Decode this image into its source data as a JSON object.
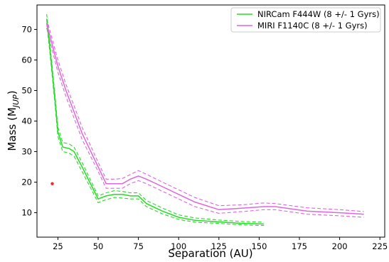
{
  "chart_data": {
    "type": "line",
    "xlabel": "Separation (AU)",
    "ylabel": "Mass (M",
    "ylabel_sub": "JUP",
    "ylabel_close": ")",
    "xlim": [
      12,
      228
    ],
    "ylim": [
      2,
      78
    ],
    "xticks": [
      25,
      50,
      75,
      100,
      125,
      150,
      175,
      200,
      225
    ],
    "yticks": [
      10,
      20,
      30,
      40,
      50,
      60,
      70
    ],
    "grid": false,
    "legend_position": "top-right",
    "series": [
      {
        "name": "NIRCam F444W (8 +/- 1 Gyrs)",
        "color": "#22dd22",
        "x": [
          18,
          20,
          23,
          25,
          28,
          32,
          35,
          40,
          50,
          55,
          60,
          65,
          70,
          75,
          80,
          90,
          100,
          110,
          125,
          140,
          153
        ],
        "y": [
          73.5,
          64,
          48,
          36.5,
          31.5,
          31,
          30,
          25,
          14.5,
          15.5,
          16,
          16,
          15.5,
          15.5,
          13,
          10.5,
          8.5,
          7.5,
          7,
          6.5,
          6.3
        ],
        "upper": [
          75,
          65.5,
          49.5,
          38,
          33,
          32.5,
          31.5,
          26.5,
          15.5,
          16.5,
          17.2,
          17,
          16.5,
          16.5,
          14,
          11.5,
          9.3,
          8.3,
          7.6,
          7.1,
          6.9
        ],
        "lower": [
          72,
          62.5,
          46.5,
          35,
          30,
          29.5,
          28.5,
          23.5,
          13.3,
          14.3,
          15,
          14.8,
          14.5,
          14.5,
          12,
          9.6,
          7.8,
          6.9,
          6.5,
          6,
          5.8
        ]
      },
      {
        "name": "MIRI F1140C (8 +/- 1 Gyrs)",
        "color": "#dd66dd",
        "x": [
          18,
          25,
          30,
          40,
          50,
          55,
          60,
          65,
          70,
          75,
          80,
          90,
          100,
          110,
          125,
          140,
          153,
          160,
          180,
          200,
          215
        ],
        "y": [
          72,
          58,
          50,
          36,
          25,
          19.5,
          19.5,
          19.5,
          21,
          22,
          21,
          18.5,
          16,
          13.5,
          11,
          11.5,
          12,
          12,
          10.5,
          10,
          9.5
        ],
        "upper": [
          73.5,
          60,
          52,
          38,
          26.5,
          21,
          21,
          21.2,
          22.5,
          23.8,
          22.6,
          20,
          17.5,
          15,
          12.3,
          12.6,
          13.2,
          13,
          11.6,
          11,
          10.4
        ],
        "lower": [
          70.5,
          56,
          48,
          34,
          23.5,
          18,
          18,
          18,
          19.5,
          20.5,
          19.5,
          17,
          14.5,
          12,
          9.8,
          10.4,
          11,
          11,
          9.5,
          9,
          8.5
        ]
      }
    ],
    "markers": [
      {
        "x": 21.5,
        "y": 19.5,
        "color": "#ff2222"
      }
    ]
  }
}
